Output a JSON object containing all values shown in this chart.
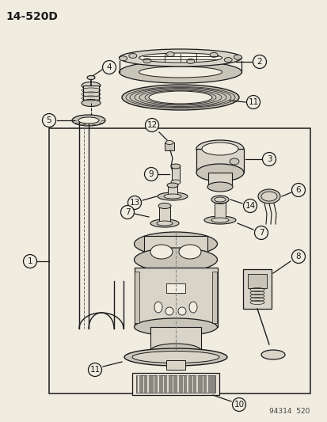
{
  "title": "14-520D",
  "footer": "94314  520",
  "bg_color": "#f0ece0",
  "line_color": "#1a1a1a",
  "fill_light": "#d8d4c8",
  "fill_mid": "#c8c4b8",
  "fill_dark": "#b8b4a8",
  "white": "#ffffff",
  "fig_width": 4.14,
  "fig_height": 5.33,
  "dpi": 100
}
